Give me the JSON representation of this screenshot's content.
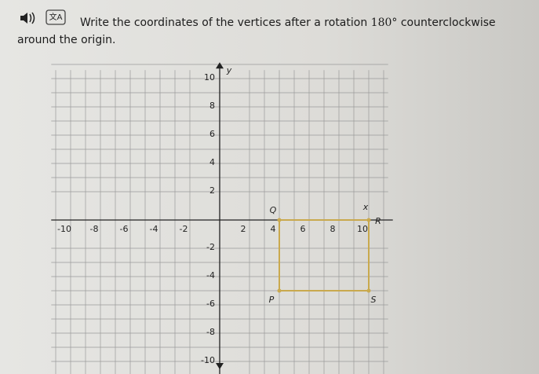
{
  "instruction": {
    "text": "Write the coordinates of the vertices after a rotation",
    "math": "180°",
    "text_after": "counterclockwise around the origin."
  },
  "graph": {
    "x_label": "x",
    "y_label": "y",
    "xlim": [
      -10,
      10
    ],
    "ylim": [
      -10,
      10
    ],
    "xticks": [
      -10,
      -8,
      -6,
      -4,
      -2,
      2,
      4,
      6,
      8,
      10
    ],
    "yticks": [
      -10,
      -8,
      -6,
      -4,
      -2,
      2,
      4,
      6,
      8,
      10
    ],
    "vertices": [
      {
        "label": "Q",
        "x": 4,
        "y": 0
      },
      {
        "label": "R",
        "x": 10,
        "y": 0
      },
      {
        "label": "S",
        "x": 10,
        "y": -5
      },
      {
        "label": "P",
        "x": 4,
        "y": -5
      }
    ]
  }
}
